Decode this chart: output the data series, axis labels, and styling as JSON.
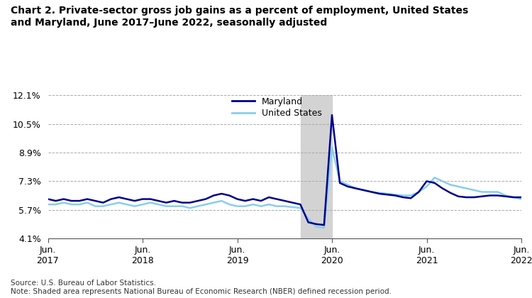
{
  "title": "Chart 2. Private-sector gross job gains as a percent of employment, United States\nand Maryland, June 2017–June 2022, seasonally adjusted",
  "source_note": "Source: U.S. Bureau of Labor Statistics.\nNote: Shaded area represents National Bureau of Economic Research (NBER) defined recession period.",
  "ylim": [
    4.1,
    12.1
  ],
  "yticks": [
    4.1,
    5.7,
    7.3,
    8.9,
    10.5,
    12.1
  ],
  "ytick_labels": [
    "4.1%",
    "5.7%",
    "7.3%",
    "8.9%",
    "10.5%",
    "12.1%"
  ],
  "recession_start": 32,
  "recession_end": 36,
  "maryland_color": "#00008B",
  "us_color": "#87CEEB",
  "maryland_linewidth": 1.8,
  "us_linewidth": 1.8,
  "maryland_data": [
    6.3,
    6.2,
    6.3,
    6.2,
    6.2,
    6.3,
    6.2,
    6.1,
    6.3,
    6.4,
    6.3,
    6.2,
    6.3,
    6.3,
    6.2,
    6.1,
    6.2,
    6.1,
    6.1,
    6.2,
    6.3,
    6.5,
    6.6,
    6.5,
    6.3,
    6.2,
    6.3,
    6.2,
    6.4,
    6.3,
    6.2,
    6.1,
    6.0,
    5.0,
    4.9,
    4.85,
    11.0,
    7.2,
    7.0,
    6.9,
    6.8,
    6.7,
    6.6,
    6.55,
    6.5,
    6.4,
    6.35,
    6.7,
    7.3,
    7.2,
    6.9,
    6.65,
    6.45,
    6.4,
    6.4,
    6.45,
    6.5,
    6.5,
    6.45,
    6.4,
    6.4
  ],
  "us_data": [
    6.0,
    6.0,
    6.1,
    6.0,
    6.0,
    6.1,
    5.9,
    5.9,
    6.0,
    6.1,
    6.0,
    5.9,
    6.0,
    6.1,
    6.0,
    5.9,
    5.9,
    5.9,
    5.8,
    5.9,
    6.0,
    6.1,
    6.2,
    6.0,
    5.9,
    5.9,
    6.0,
    5.9,
    6.0,
    5.9,
    5.9,
    5.85,
    5.8,
    5.2,
    4.75,
    4.7,
    9.2,
    7.3,
    7.1,
    6.9,
    6.8,
    6.7,
    6.65,
    6.6,
    6.55,
    6.5,
    6.5,
    6.7,
    7.0,
    7.5,
    7.3,
    7.1,
    7.0,
    6.9,
    6.8,
    6.7,
    6.7,
    6.7,
    6.5,
    6.4,
    6.3
  ],
  "n_points": 61,
  "xtick_positions": [
    0,
    12,
    24,
    36,
    48,
    60
  ],
  "xtick_labels": [
    "Jun.\n2017",
    "Jun.\n2018",
    "Jun.\n2019",
    "Jun.\n2020",
    "Jun.\n2021",
    "Jun.\n2022"
  ],
  "background_color": "#ffffff",
  "grid_color": "#aaaaaa",
  "legend_labels": [
    "Maryland",
    "United States"
  ]
}
